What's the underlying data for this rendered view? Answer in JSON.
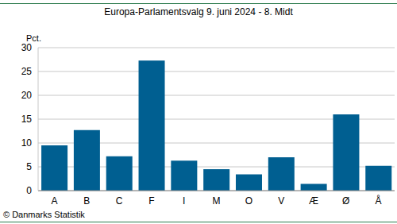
{
  "chart_data": {
    "type": "bar",
    "title": "Europa-Parlamentsvalg 9. juni 2024 - 8. Midt",
    "y_label": "Pct.",
    "source": "© Danmarks Statistik",
    "categories": [
      "A",
      "B",
      "C",
      "F",
      "I",
      "M",
      "O",
      "V",
      "Æ",
      "Ø",
      "Å"
    ],
    "values": [
      9.5,
      12.7,
      7.2,
      27.3,
      6.3,
      4.5,
      3.4,
      7.0,
      1.4,
      16.0,
      5.2
    ],
    "color": "#005f91",
    "ylim": [
      0,
      30
    ],
    "yticks": [
      0,
      5,
      10,
      15,
      20,
      25,
      30
    ],
    "grid": true
  }
}
